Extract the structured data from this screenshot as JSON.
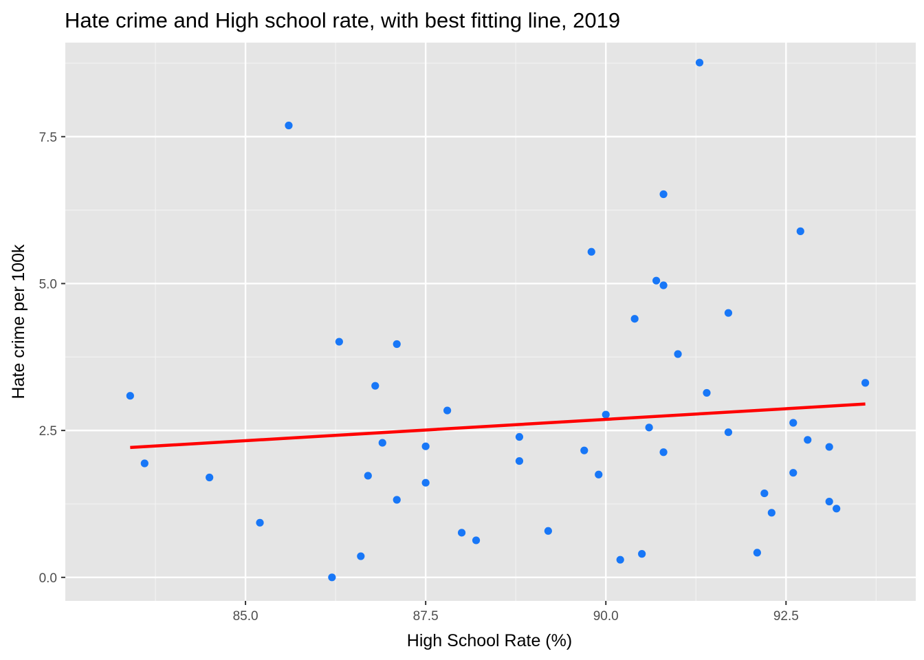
{
  "chart_data": {
    "type": "scatter",
    "title": "Hate crime and High school rate, with best fitting line, 2019",
    "xlabel": "High School Rate (%)",
    "ylabel": "Hate crime per 100k",
    "xlim": [
      82.5,
      94.3
    ],
    "ylim": [
      -0.4,
      9.1
    ],
    "x_ticks": [
      85.0,
      87.5,
      90.0,
      92.5
    ],
    "x_tick_labels": [
      "85.0",
      "87.5",
      "90.0",
      "92.5"
    ],
    "y_ticks": [
      0.0,
      2.5,
      5.0,
      7.5
    ],
    "y_tick_labels": [
      "0.0",
      "2.5",
      "5.0",
      "7.5"
    ],
    "grid": true,
    "background": "#e5e5e5",
    "point_color": "#1877f7",
    "line_color": "#ff0000",
    "points": [
      {
        "x": 83.4,
        "y": 3.09
      },
      {
        "x": 83.6,
        "y": 1.94
      },
      {
        "x": 84.5,
        "y": 1.7
      },
      {
        "x": 85.2,
        "y": 0.93
      },
      {
        "x": 85.6,
        "y": 7.69
      },
      {
        "x": 86.2,
        "y": 0.0
      },
      {
        "x": 86.3,
        "y": 4.01
      },
      {
        "x": 86.6,
        "y": 0.36
      },
      {
        "x": 86.7,
        "y": 1.73
      },
      {
        "x": 86.8,
        "y": 3.26
      },
      {
        "x": 86.9,
        "y": 2.29
      },
      {
        "x": 87.1,
        "y": 3.97
      },
      {
        "x": 87.1,
        "y": 1.32
      },
      {
        "x": 87.5,
        "y": 2.23
      },
      {
        "x": 87.5,
        "y": 1.61
      },
      {
        "x": 87.8,
        "y": 2.84
      },
      {
        "x": 88.0,
        "y": 0.76
      },
      {
        "x": 88.2,
        "y": 0.63
      },
      {
        "x": 88.8,
        "y": 2.39
      },
      {
        "x": 88.8,
        "y": 1.98
      },
      {
        "x": 89.2,
        "y": 0.79
      },
      {
        "x": 89.7,
        "y": 2.16
      },
      {
        "x": 89.8,
        "y": 5.54
      },
      {
        "x": 89.9,
        "y": 1.75
      },
      {
        "x": 90.0,
        "y": 2.77
      },
      {
        "x": 90.2,
        "y": 0.3
      },
      {
        "x": 90.4,
        "y": 4.4
      },
      {
        "x": 90.5,
        "y": 0.4
      },
      {
        "x": 90.6,
        "y": 2.55
      },
      {
        "x": 90.7,
        "y": 5.05
      },
      {
        "x": 90.8,
        "y": 4.97
      },
      {
        "x": 90.8,
        "y": 6.52
      },
      {
        "x": 90.8,
        "y": 2.13
      },
      {
        "x": 91.0,
        "y": 3.8
      },
      {
        "x": 91.3,
        "y": 8.76
      },
      {
        "x": 91.4,
        "y": 3.14
      },
      {
        "x": 91.7,
        "y": 4.5
      },
      {
        "x": 91.7,
        "y": 2.47
      },
      {
        "x": 92.1,
        "y": 0.42
      },
      {
        "x": 92.2,
        "y": 1.43
      },
      {
        "x": 92.3,
        "y": 1.1
      },
      {
        "x": 92.6,
        "y": 2.63
      },
      {
        "x": 92.6,
        "y": 1.78
      },
      {
        "x": 92.7,
        "y": 5.89
      },
      {
        "x": 92.8,
        "y": 2.34
      },
      {
        "x": 93.1,
        "y": 2.22
      },
      {
        "x": 93.1,
        "y": 1.29
      },
      {
        "x": 93.2,
        "y": 1.17
      },
      {
        "x": 93.6,
        "y": 3.31
      }
    ],
    "fit_line": {
      "x": [
        83.4,
        93.6
      ],
      "y": [
        2.21,
        2.95
      ]
    }
  }
}
